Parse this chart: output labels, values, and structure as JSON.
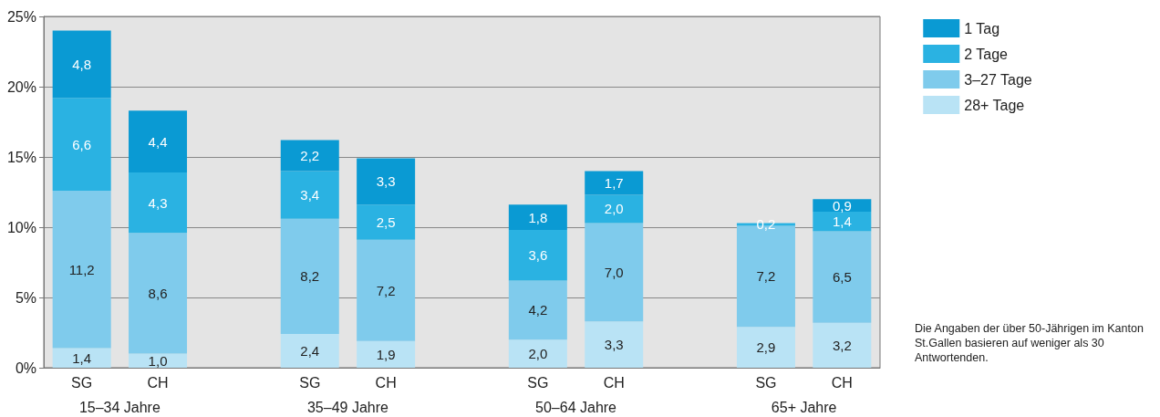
{
  "chart_data": {
    "type": "bar",
    "stacked": true,
    "categories": [
      "SG",
      "CH",
      null,
      "SG",
      "CH",
      null,
      "SG",
      "CH",
      null,
      "SG",
      "CH"
    ],
    "series": [
      {
        "name": "28+ Tage",
        "color": "#b9e3f5",
        "values": [
          1.4,
          1.0,
          null,
          2.4,
          1.9,
          null,
          2.0,
          3.3,
          null,
          2.9,
          3.2
        ],
        "value_labels": [
          "1,4",
          "1,0",
          null,
          "2,4",
          "1,9",
          null,
          "2,0",
          "3,3",
          null,
          "2,9",
          "3,2"
        ]
      },
      {
        "name": "3–27 Tage",
        "color": "#7fcbec",
        "values": [
          11.2,
          8.6,
          null,
          8.2,
          7.2,
          null,
          4.2,
          7.0,
          null,
          7.2,
          6.5
        ],
        "value_labels": [
          "11,2",
          "8,6",
          null,
          "8,2",
          "7,2",
          null,
          "4,2",
          "7,0",
          null,
          "7,2",
          "6,5"
        ]
      },
      {
        "name": "2 Tage",
        "color": "#2ab2e2",
        "values": [
          6.6,
          4.3,
          null,
          3.4,
          2.5,
          null,
          3.6,
          2.0,
          null,
          0.2,
          1.4
        ],
        "value_labels": [
          "6,6",
          "4,3",
          null,
          "3,4",
          "2,5",
          null,
          "3,6",
          "2,0",
          null,
          "0,2",
          "1,4"
        ]
      },
      {
        "name": "1 Tag",
        "color": "#0a9ad3",
        "values": [
          4.8,
          4.4,
          null,
          2.2,
          3.3,
          null,
          1.8,
          1.7,
          null,
          null,
          0.9
        ],
        "value_labels": [
          "4,8",
          "4,4",
          null,
          "2,2",
          "3,3",
          null,
          "1,8",
          "1,7",
          null,
          null,
          "0,9"
        ]
      }
    ],
    "ylim": [
      0,
      25
    ],
    "yticks": [
      {
        "value": 0,
        "label": "0%"
      },
      {
        "value": 5,
        "label": "5%"
      },
      {
        "value": 10,
        "label": "10%"
      },
      {
        "value": 15,
        "label": "15%"
      },
      {
        "value": 20,
        "label": "20%"
      },
      {
        "value": 25,
        "label": "25%"
      }
    ],
    "grid": "y",
    "legend": "top right",
    "annotations": [
      "15–34 Jahre",
      "35–49 Jahre",
      "50–64 Jahre",
      "65+ Jahre",
      "Die Angaben der über 50-Jährigen im Kanton St.Gallen basieren auf weniger als 30 Antwortenden."
    ]
  }
}
